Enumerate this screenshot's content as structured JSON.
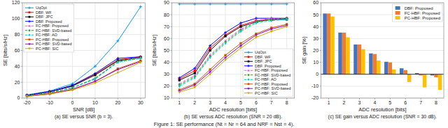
{
  "title": "Figure 1: SE performance (Nt = Nr = 64 and NRF = Nst = 4).",
  "chart_data": [
    {
      "type": "line",
      "title": "(a) SE versus SNR (b = 3).",
      "xlabel": "SNR [dB]",
      "ylabel": "SE [bits/s/Hz]",
      "x": [
        -20,
        -10,
        0,
        10,
        20,
        30
      ],
      "xlim": [
        -22,
        32
      ],
      "xticks": [
        -20,
        -10,
        0,
        10,
        20,
        30
      ],
      "ylim": [
        0,
        120
      ],
      "yticks": [
        0,
        20,
        40,
        60,
        80,
        100,
        120
      ],
      "grid": true,
      "legend": "upper left",
      "series": [
        {
          "name": "UqOpt",
          "color": "#0099FF",
          "marker": "plus",
          "line_style": "solid",
          "values": [
            4,
            9,
            18,
            40,
            72,
            115
          ]
        },
        {
          "name": "DBF: WF",
          "color": "#FF0000",
          "marker": "square",
          "line_style": "solid",
          "values": [
            3.5,
            8,
            16,
            30,
            48,
            52
          ]
        },
        {
          "name": "DBF: JPC",
          "color": "#000000",
          "marker": "square",
          "line_style": "solid",
          "values": [
            3.5,
            8,
            15,
            29,
            47,
            51
          ]
        },
        {
          "name": "DBF: Proposed",
          "color": "#0000FF",
          "marker": "plus",
          "line_style": "solid",
          "values": [
            3.5,
            8,
            16,
            31,
            50,
            52
          ]
        },
        {
          "name": "FC-HBF: Proposed",
          "color": "#FF44FF",
          "marker": "triangle-up",
          "line_style": "dashed",
          "values": [
            3,
            7,
            13,
            24,
            46,
            51
          ]
        },
        {
          "name": "FC-HBF: SVD-based",
          "color": "#00BB00",
          "marker": "diamond",
          "line_style": "dashed",
          "values": [
            3,
            7,
            13,
            25,
            46,
            51
          ]
        },
        {
          "name": "FC-HBF: AO",
          "color": "#00CCCC",
          "marker": "diamond",
          "line_style": "dashed",
          "values": [
            3,
            6,
            13,
            24,
            45,
            50
          ]
        },
        {
          "name": "PC-HBF: Proposed",
          "color": "#CC5500",
          "marker": "square",
          "line_style": "solid",
          "values": [
            2.5,
            6,
            11,
            21,
            37,
            47
          ]
        },
        {
          "name": "PC-HBF: SVD-based",
          "color": "#9900CC",
          "marker": "star",
          "line_style": "solid",
          "values": [
            2.5,
            5,
            11,
            21,
            36,
            46
          ]
        },
        {
          "name": "PC-HBF: SIC",
          "color": "#CCAA00",
          "marker": "triangle-down",
          "line_style": "solid",
          "values": [
            2,
            5,
            10,
            19,
            32,
            45
          ]
        }
      ]
    },
    {
      "type": "line",
      "title": "(b) SE versus ADC resolution (SNR = 20 dB).",
      "xlabel": "ADC resolution [bits]",
      "ylabel": "SE [bits/s/Hz]",
      "x": [
        1,
        2,
        3,
        4,
        5,
        6,
        7,
        8
      ],
      "xlim": [
        0.5,
        8.5
      ],
      "xticks": [
        1,
        2,
        3,
        4,
        5,
        6,
        7,
        8
      ],
      "ylim": [
        10,
        90
      ],
      "yticks": [
        10,
        20,
        30,
        40,
        50,
        60,
        70,
        80,
        90
      ],
      "grid": true,
      "legend": "lower right",
      "series": [
        {
          "name": "UqOpt",
          "color": "#0099FF",
          "marker": "plus",
          "line_style": "solid",
          "values": [
            89,
            89,
            89,
            89,
            89,
            89,
            89,
            89
          ]
        },
        {
          "name": "DBF: WF",
          "color": "#FF0000",
          "marker": "square",
          "line_style": "solid",
          "values": [
            26,
            33,
            52,
            63,
            71,
            75,
            76,
            77
          ]
        },
        {
          "name": "DBF: JPC",
          "color": "#000000",
          "marker": "square",
          "line_style": "solid",
          "values": [
            25,
            31,
            50,
            62,
            70,
            74,
            76,
            76
          ]
        },
        {
          "name": "DBF: Proposed",
          "color": "#0000FF",
          "marker": "plus",
          "line_style": "solid",
          "values": [
            27,
            35,
            54,
            65,
            73,
            77,
            77,
            77
          ]
        },
        {
          "name": "FC-HBF: Proposed",
          "color": "#FF44FF",
          "marker": "triangle-up",
          "line_style": "dashed",
          "values": [
            22,
            29,
            46,
            58,
            68,
            75,
            77,
            77
          ]
        },
        {
          "name": "FC-HBF: SVD-based",
          "color": "#00BB00",
          "marker": "diamond",
          "line_style": "dashed",
          "values": [
            21,
            28,
            45,
            57,
            67,
            74,
            76,
            77
          ]
        },
        {
          "name": "FC-HBF: AO",
          "color": "#00CCCC",
          "marker": "diamond",
          "line_style": "dashed",
          "values": [
            20,
            27,
            44,
            56,
            66,
            73,
            75,
            76
          ]
        },
        {
          "name": "PC-HBF: Proposed",
          "color": "#CC5500",
          "marker": "square",
          "line_style": "solid",
          "values": [
            17,
            22,
            34,
            46,
            56,
            64,
            69,
            72
          ]
        },
        {
          "name": "PC-HBF: SVD-based",
          "color": "#9900CC",
          "marker": "star",
          "line_style": "solid",
          "values": [
            16,
            21,
            32,
            44,
            54,
            63,
            68,
            71
          ]
        },
        {
          "name": "PC-HBF: SIC",
          "color": "#CCAA00",
          "marker": "triangle-down",
          "line_style": "solid",
          "values": [
            15,
            19,
            30,
            42,
            52,
            61,
            66,
            70
          ]
        }
      ]
    },
    {
      "type": "bar",
      "title": "(c) SE gain versus ADC resolution (SNR = 30 dB).",
      "xlabel": "ADC resolution [bits]",
      "ylabel": "SE gain [%]",
      "x": [
        1,
        2,
        3,
        4,
        5,
        6,
        7,
        8
      ],
      "xlim": [
        0.5,
        8.5
      ],
      "xticks": [
        1,
        2,
        3,
        4,
        5,
        6,
        7,
        8
      ],
      "ylim": [
        -20,
        60
      ],
      "yticks": [
        -20,
        -10,
        0,
        10,
        20,
        30,
        40,
        50,
        60
      ],
      "grid": "y",
      "legend": "upper right",
      "series": [
        {
          "name": "DBF: Proposed",
          "color": "#4472C4",
          "values": [
            51.0,
            35.0,
            25.0,
            17.5,
            10.5,
            5.0,
            1.0,
            -1.0
          ]
        },
        {
          "name": "FC-HBF: Proposed",
          "color": "#ED7D31",
          "values": [
            51.0,
            35.0,
            25.0,
            17.0,
            10.0,
            3.5,
            -1.0,
            -2.5
          ]
        },
        {
          "name": "PC-HBF: Proposed",
          "color": "#FFC000",
          "values": [
            48.5,
            31.0,
            21.0,
            11.5,
            4.0,
            -6.5,
            -11.0,
            -13.0
          ]
        }
      ]
    }
  ]
}
